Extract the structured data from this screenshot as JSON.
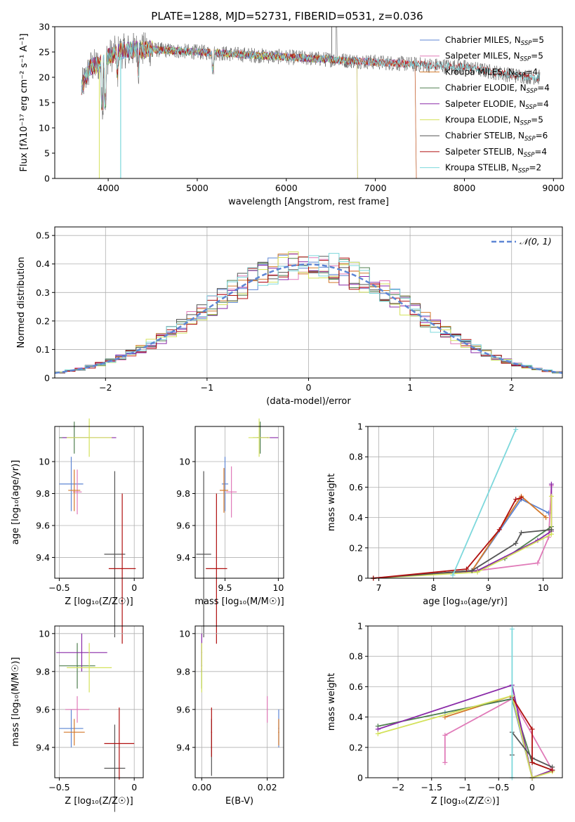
{
  "colors": {
    "palette": [
      "#5e86d4",
      "#e07ab8",
      "#d4792a",
      "#4f7f4f",
      "#8a2aa8",
      "#d4e25c",
      "#555555",
      "#b01010",
      "#7dd8dc"
    ],
    "gauss": "#5e86d4",
    "grid": "#b0b0b0"
  },
  "chart_data": [
    {
      "id": "spectrum",
      "type": "line",
      "title": "PLATE=1288, MJD=52731, FIBERID=0531, z=0.036",
      "xlabel": "wavelength [Angstrom, rest frame]",
      "ylabel": "Flux [fλ10⁻¹⁷ erg cm⁻² s⁻¹ A⁻¹]",
      "xlim": [
        3400,
        9100
      ],
      "ylim": [
        0,
        30
      ],
      "xticks": [
        4000,
        5000,
        6000,
        7000,
        8000,
        9000
      ],
      "yticks": [
        0,
        5,
        10,
        15,
        20,
        25,
        30
      ],
      "grid": false,
      "legend_position": "top-right",
      "approx_continuum": {
        "x": [
          3700,
          3800,
          3900,
          4000,
          4100,
          4300,
          4500,
          5000,
          5500,
          6000,
          6500,
          7000,
          7500,
          8000,
          8500,
          8800
        ],
        "y": [
          18,
          22,
          22.5,
          24,
          25,
          25.5,
          25.5,
          25,
          24.5,
          24,
          23.5,
          23,
          22.5,
          22,
          20.5,
          20
        ]
      },
      "series": [
        {
          "name": "Chabrier MILES, N_SSP=5",
          "range": [
            3700,
            7450
          ]
        },
        {
          "name": "Salpeter MILES, N_SSP=5",
          "range": [
            3700,
            7450
          ]
        },
        {
          "name": "Kroupa MILES, N_SSP=4",
          "range": [
            3700,
            7450
          ]
        },
        {
          "name": "Chabrier ELODIE, N_SSP=4",
          "range": [
            3700,
            6800
          ]
        },
        {
          "name": "Salpeter ELODIE, N_SSP=4",
          "range": [
            3700,
            6800
          ]
        },
        {
          "name": "Kroupa ELODIE, N_SSP=5",
          "range": [
            3700,
            6800
          ]
        },
        {
          "name": "Chabrier STELIB, N_SSP=6",
          "range": [
            3700,
            8850
          ]
        },
        {
          "name": "Salpeter STELIB, N_SSP=4",
          "range": [
            3700,
            8850
          ]
        },
        {
          "name": "Kroupa STELIB, N_SSP=2",
          "range": [
            3700,
            8850
          ]
        }
      ]
    },
    {
      "id": "residuals",
      "type": "histogram",
      "xlabel": "(data-model)/error",
      "ylabel": "Normed distribution",
      "xlim": [
        -2.5,
        2.5
      ],
      "ylim": [
        0,
        0.53
      ],
      "xticks": [
        -2,
        -1,
        0,
        1,
        2
      ],
      "yticks": [
        0.0,
        0.1,
        0.2,
        0.3,
        0.4,
        0.5
      ],
      "bin_width": 0.1,
      "grid": true,
      "legend_position": "top-right",
      "legend": "𝒩(0, 1)"
    },
    {
      "id": "age_vs_Z",
      "type": "scatter",
      "xlabel": "Z [log₁₀(Z/Z☉)]",
      "ylabel": "age  [log₁₀(age/yr)]",
      "xlim": [
        -0.53,
        0.06
      ],
      "ylim": [
        9.27,
        10.22
      ],
      "xticks": [
        -0.5,
        0.0
      ],
      "yticks": [
        9.4,
        9.6,
        9.8,
        10.0
      ],
      "grid": true,
      "points": [
        {
          "x": -0.42,
          "y": 9.86,
          "xerr": 0.08,
          "yerr": 0.17,
          "c": 0
        },
        {
          "x": -0.38,
          "y": 9.81,
          "xerr": 0.03,
          "yerr": 0.14,
          "c": 1
        },
        {
          "x": -0.4,
          "y": 9.82,
          "xerr": 0.04,
          "yerr": 0.13,
          "c": 2
        },
        {
          "x": -0.4,
          "y": 10.15,
          "xerr": 0.1,
          "yerr": 0.1,
          "c": 3
        },
        {
          "x": -0.3,
          "y": 10.15,
          "xerr": 0.18,
          "yerr": 0.0,
          "c": 4
        },
        {
          "x": -0.3,
          "y": 10.15,
          "xerr": 0.15,
          "yerr": 0.12,
          "c": 5
        },
        {
          "x": -0.13,
          "y": 9.42,
          "xerr": 0.07,
          "yerr": 0.52,
          "c": 6
        },
        {
          "x": -0.08,
          "y": 9.33,
          "xerr": 0.09,
          "yerr": 0.47,
          "c": 7
        }
      ]
    },
    {
      "id": "age_vs_mass",
      "type": "scatter",
      "xlabel": "mass [log₁₀(M/M☉)]",
      "ylabel": "",
      "xlim": [
        9.22,
        10.05
      ],
      "ylim": [
        9.27,
        10.22
      ],
      "xticks": [
        9.5,
        10.0
      ],
      "yticks": [
        9.4,
        9.6,
        9.8,
        10.0
      ],
      "grid": true,
      "points": [
        {
          "x": 9.5,
          "y": 9.86,
          "xerr": 0.03,
          "yerr": 0.17,
          "c": 0
        },
        {
          "x": 9.56,
          "y": 9.81,
          "xerr": 0.05,
          "yerr": 0.16,
          "c": 1
        },
        {
          "x": 9.49,
          "y": 9.82,
          "xerr": 0.04,
          "yerr": 0.14,
          "c": 2
        },
        {
          "x": 9.83,
          "y": 10.15,
          "xerr": 0.07,
          "yerr": 0.1,
          "c": 3
        },
        {
          "x": 9.9,
          "y": 10.15,
          "xerr": 0.1,
          "yerr": 0.0,
          "c": 4
        },
        {
          "x": 9.82,
          "y": 10.15,
          "xerr": 0.1,
          "yerr": 0.12,
          "c": 5
        },
        {
          "x": 9.3,
          "y": 9.42,
          "xerr": 0.07,
          "yerr": 0.52,
          "c": 6
        },
        {
          "x": 9.42,
          "y": 9.33,
          "xerr": 0.1,
          "yerr": 0.47,
          "c": 7
        }
      ]
    },
    {
      "id": "weight_vs_age",
      "type": "line",
      "xlabel": "age  [log₁₀(age/yr)]",
      "ylabel": "mass weight",
      "xlim": [
        6.8,
        10.35
      ],
      "ylim": [
        0,
        1.0
      ],
      "xticks": [
        7,
        8,
        9,
        10
      ],
      "yticks": [
        0.0,
        0.2,
        0.4,
        0.6,
        0.8,
        1.0
      ],
      "grid": true,
      "series": [
        {
          "c": 0,
          "x": [
            6.9,
            8.7,
            9.6,
            10.1
          ],
          "y": [
            0.0,
            0.05,
            0.52,
            0.43
          ]
        },
        {
          "c": 1,
          "x": [
            6.9,
            8.8,
            9.9,
            10.1,
            10.15
          ],
          "y": [
            0.0,
            0.05,
            0.1,
            0.27,
            0.61
          ]
        },
        {
          "c": 2,
          "x": [
            6.9,
            8.7,
            9.6,
            10.05
          ],
          "y": [
            0.0,
            0.05,
            0.54,
            0.4
          ]
        },
        {
          "c": 3,
          "x": [
            6.9,
            8.8,
            9.3,
            10.15
          ],
          "y": [
            0.0,
            0.05,
            0.13,
            0.34
          ]
        },
        {
          "c": 4,
          "x": [
            6.9,
            8.8,
            9.9,
            10.15,
            10.15
          ],
          "y": [
            0.0,
            0.05,
            0.25,
            0.31,
            0.62
          ]
        },
        {
          "c": 5,
          "x": [
            6.9,
            8.8,
            10.15,
            10.15
          ],
          "y": [
            0.0,
            0.04,
            0.29,
            0.54
          ]
        },
        {
          "c": 6,
          "x": [
            6.9,
            8.7,
            9.5,
            9.6,
            10.15
          ],
          "y": [
            0.0,
            0.05,
            0.23,
            0.3,
            0.32
          ]
        },
        {
          "c": 7,
          "x": [
            6.9,
            8.6,
            9.2,
            9.5,
            9.6
          ],
          "y": [
            0.0,
            0.06,
            0.32,
            0.52,
            0.53
          ]
        },
        {
          "c": 8,
          "x": [
            8.35,
            9.5
          ],
          "y": [
            0.02,
            0.98
          ]
        }
      ]
    },
    {
      "id": "mass_vs_Z",
      "type": "scatter",
      "xlabel": "Z [log₁₀(Z/Z☉)]",
      "ylabel": "mass [log₁₀(M/M☉)]",
      "xlim": [
        -0.53,
        0.06
      ],
      "ylim": [
        9.24,
        10.04
      ],
      "xticks": [
        -0.5,
        0.0
      ],
      "yticks": [
        9.4,
        9.6,
        9.8,
        10.0
      ],
      "grid": true,
      "points": [
        {
          "x": -0.42,
          "y": 9.5,
          "xerr": 0.08,
          "yerr": 0.1,
          "c": 0
        },
        {
          "x": -0.38,
          "y": 9.6,
          "xerr": 0.08,
          "yerr": 0.07,
          "c": 1
        },
        {
          "x": -0.4,
          "y": 9.48,
          "xerr": 0.07,
          "yerr": 0.07,
          "c": 2
        },
        {
          "x": -0.38,
          "y": 9.83,
          "xerr": 0.12,
          "yerr": 0.12,
          "c": 3
        },
        {
          "x": -0.35,
          "y": 9.9,
          "xerr": 0.17,
          "yerr": 0.1,
          "c": 4
        },
        {
          "x": -0.3,
          "y": 9.82,
          "xerr": 0.15,
          "yerr": 0.13,
          "c": 5
        },
        {
          "x": -0.13,
          "y": 9.29,
          "xerr": 0.07,
          "yerr": 0.23,
          "c": 6
        },
        {
          "x": -0.1,
          "y": 9.42,
          "xerr": 0.1,
          "yerr": 0.19,
          "c": 7
        }
      ]
    },
    {
      "id": "mass_vs_ebv",
      "type": "scatter",
      "xlabel": "E(B-V)",
      "ylabel": "",
      "xlim": [
        -0.002,
        0.025
      ],
      "ylim": [
        9.24,
        10.04
      ],
      "xticks": [
        0.0,
        0.02
      ],
      "xtick_labels": [
        "0.00",
        "0.02"
      ],
      "yticks": [
        9.4,
        9.6,
        9.8,
        10.0
      ],
      "grid": true,
      "points": [
        {
          "x": 0.0235,
          "y": 9.5,
          "xerr": 0.0,
          "yerr": 0.1,
          "c": 0
        },
        {
          "x": 0.02,
          "y": 9.6,
          "xerr": 0.0,
          "yerr": 0.07,
          "c": 1
        },
        {
          "x": 0.0235,
          "y": 9.48,
          "xerr": 0.0,
          "yerr": 0.07,
          "c": 2
        },
        {
          "x": 0.0,
          "y": 9.83,
          "xerr": 0.0,
          "yerr": 0.12,
          "c": 3
        },
        {
          "x": 0.0,
          "y": 9.9,
          "xerr": 0.0,
          "yerr": 0.1,
          "c": 4
        },
        {
          "x": 0.0,
          "y": 9.82,
          "xerr": 0.0,
          "yerr": 0.13,
          "c": 5
        },
        {
          "x": 0.003,
          "y": 9.4,
          "xerr": 0.0,
          "yerr": 0.15,
          "c": 6
        },
        {
          "x": 0.003,
          "y": 9.48,
          "xerr": 0.0,
          "yerr": 0.13,
          "c": 7
        }
      ]
    },
    {
      "id": "weight_vs_Z",
      "type": "line",
      "xlabel": "Z [log₁₀(Z/Z☉)]",
      "ylabel": "mass weight",
      "xlim": [
        -2.45,
        0.45
      ],
      "ylim": [
        0,
        1.0
      ],
      "xticks": [
        -2.0,
        -1.5,
        -1.0,
        -0.5,
        0.0
      ],
      "yticks": [
        0.0,
        0.2,
        0.4,
        0.6,
        0.8,
        1.0
      ],
      "grid": true,
      "series": [
        {
          "c": 0,
          "x": [
            -1.3,
            -0.3,
            0.0,
            0.3
          ],
          "y": [
            0.43,
            0.52,
            0.0,
            0.05
          ]
        },
        {
          "c": 1,
          "x": [
            -1.3,
            -1.3,
            -0.3,
            -0.3,
            0.3
          ],
          "y": [
            0.1,
            0.28,
            0.52,
            0.52,
            0.05
          ]
        },
        {
          "c": 2,
          "x": [
            -1.3,
            -0.3,
            0.0,
            0.3
          ],
          "y": [
            0.4,
            0.54,
            0.0,
            0.05
          ]
        },
        {
          "c": 3,
          "x": [
            -2.3,
            -0.3,
            0.0,
            0.3
          ],
          "y": [
            0.34,
            0.52,
            0.1,
            0.05
          ]
        },
        {
          "c": 4,
          "x": [
            -2.3,
            -0.3,
            0.0,
            0.3
          ],
          "y": [
            0.32,
            0.61,
            0.0,
            0.05
          ]
        },
        {
          "c": 5,
          "x": [
            -2.3,
            -0.3,
            0.0,
            0.3
          ],
          "y": [
            0.29,
            0.54,
            0.0,
            0.04
          ]
        },
        {
          "c": 6,
          "x": [
            -0.3,
            -0.3,
            0.0,
            0.3
          ],
          "y": [
            0.15,
            0.3,
            0.13,
            0.07
          ]
        },
        {
          "c": 7,
          "x": [
            -0.3,
            0.0,
            0.0,
            0.3
          ],
          "y": [
            0.53,
            0.32,
            0.1,
            0.05
          ]
        },
        {
          "c": 8,
          "x": [
            -0.3,
            -0.3
          ],
          "y": [
            0.0,
            0.98
          ]
        }
      ]
    }
  ]
}
